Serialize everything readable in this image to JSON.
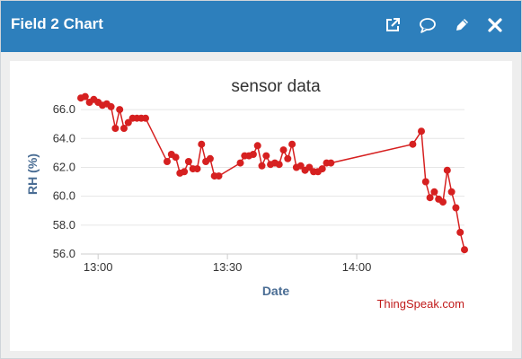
{
  "header": {
    "title": "Field 2 Chart"
  },
  "toolbar": {
    "icons": [
      "external-window-icon",
      "comment-icon",
      "pencil-icon",
      "close-icon"
    ]
  },
  "colors": {
    "header_bg": "#2d7fbc",
    "series": "#d62020",
    "axis_title": "#4a6d94",
    "credits": "#c01a1a"
  },
  "chart_data": {
    "type": "line",
    "title": "sensor data",
    "xlabel": "Date",
    "ylabel": "RH (%)",
    "ylim": [
      56.0,
      67.0
    ],
    "xlim": [
      "12:56",
      "14:25"
    ],
    "y_ticks": [
      "56.0",
      "58.0",
      "60.0",
      "62.0",
      "64.0",
      "66.0"
    ],
    "x_ticks": [
      "13:00",
      "13:30",
      "14:00"
    ],
    "grid": true,
    "legend": "none",
    "credits": "ThingSpeak.com",
    "series": [
      {
        "x": [
          "12:56",
          "12:57",
          "12:58",
          "12:59",
          "13:00",
          "13:01",
          "13:02",
          "13:03",
          "13:04",
          "13:05",
          "13:06",
          "13:07",
          "13:08",
          "13:09",
          "13:10",
          "13:11",
          "13:16",
          "13:17",
          "13:18",
          "13:19",
          "13:20",
          "13:21",
          "13:22",
          "13:23",
          "13:24",
          "13:25",
          "13:26",
          "13:27",
          "13:28",
          "13:33",
          "13:34",
          "13:35",
          "13:36",
          "13:37",
          "13:38",
          "13:39",
          "13:40",
          "13:41",
          "13:42",
          "13:43",
          "13:44",
          "13:45",
          "13:46",
          "13:47",
          "13:48",
          "13:49",
          "13:50",
          "13:51",
          "13:52",
          "13:53",
          "13:54",
          "14:13",
          "14:15",
          "14:16",
          "14:17",
          "14:18",
          "14:19",
          "14:20",
          "14:21",
          "14:22",
          "14:23",
          "14:24",
          "14:25"
        ],
        "values": [
          66.8,
          66.9,
          66.5,
          66.7,
          66.5,
          66.3,
          66.4,
          66.2,
          64.7,
          66.0,
          64.7,
          65.1,
          65.4,
          65.4,
          65.4,
          65.4,
          62.4,
          62.9,
          62.7,
          61.6,
          61.7,
          62.4,
          61.9,
          61.9,
          63.6,
          62.4,
          62.6,
          61.4,
          61.4,
          62.3,
          62.8,
          62.8,
          62.9,
          63.5,
          62.1,
          62.8,
          62.2,
          62.3,
          62.2,
          63.2,
          62.6,
          63.6,
          62.0,
          62.1,
          61.8,
          62.0,
          61.7,
          61.7,
          61.9,
          62.3,
          62.3,
          63.6,
          64.5,
          61.0,
          59.9,
          60.3,
          59.8,
          59.6,
          61.8,
          60.3,
          59.2,
          57.5,
          56.3
        ]
      }
    ]
  },
  "credits_text": "ThingSpeak.com"
}
